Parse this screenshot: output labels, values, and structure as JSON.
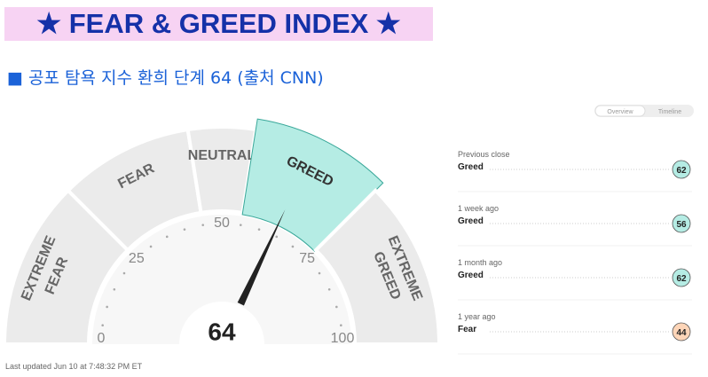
{
  "header": {
    "title": "★ FEAR & GREED INDEX ★",
    "subtitle": "■ 공포 탐욕 지수 환희 단계 64 (출처 CNN)"
  },
  "tabs": [
    "Overview",
    "Timeline"
  ],
  "chart_data": {
    "type": "gauge",
    "value": 64,
    "xlim": [
      0,
      100
    ],
    "xticks": [
      0,
      25,
      50,
      75,
      100
    ],
    "bands": [
      {
        "lines": [
          "EXTREME",
          "FEAR"
        ],
        "range": [
          0,
          25
        ],
        "color": "#ebebeb"
      },
      {
        "lines": [
          "FEAR"
        ],
        "range": [
          25,
          45
        ],
        "color": "#ebebeb"
      },
      {
        "lines": [
          "NEUTRAL"
        ],
        "range": [
          45,
          55
        ],
        "color": "#ebebeb"
      },
      {
        "lines": [
          "GREED"
        ],
        "range": [
          55,
          75
        ],
        "color": "#b5ece4",
        "active": true
      },
      {
        "lines": [
          "EXTREME",
          "GREED"
        ],
        "range": [
          75,
          100
        ],
        "color": "#ebebeb"
      }
    ]
  },
  "history": [
    {
      "when": "Previous close",
      "rating": "Greed",
      "value": 62,
      "color": "#b5ece4"
    },
    {
      "when": "1 week ago",
      "rating": "Greed",
      "value": 56,
      "color": "#b5ece4"
    },
    {
      "when": "1 month ago",
      "rating": "Greed",
      "value": 62,
      "color": "#b5ece4"
    },
    {
      "when": "1 year ago",
      "rating": "Fear",
      "value": 44,
      "color": "#fdd5b8"
    }
  ],
  "footer": "Last updated Jun 10 at 7:48:32 PM ET"
}
